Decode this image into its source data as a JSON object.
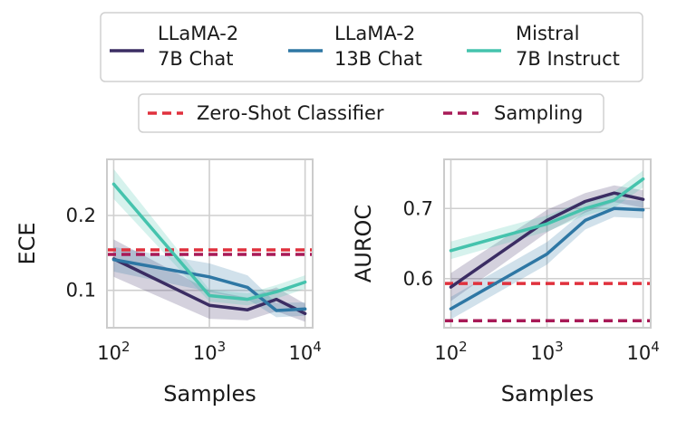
{
  "legend_models": [
    {
      "line1": "LLaMA-2",
      "line2": "7B Chat",
      "color": "#3b2d63"
    },
    {
      "line1": "LLaMA-2",
      "line2": "13B Chat",
      "color": "#2e77a4"
    },
    {
      "line1": "Mistral",
      "line2": "7B Instruct",
      "color": "#45c3ad"
    }
  ],
  "legend_baselines": [
    {
      "label": "Zero-Shot Classifier",
      "color": "#e0313d"
    },
    {
      "label": "Sampling",
      "color": "#a81a57"
    }
  ],
  "chart_data": [
    {
      "type": "line",
      "xscale": "log",
      "xlabel": "Samples",
      "ylabel": "ECE",
      "xlim": [
        85,
        12000
      ],
      "ylim": [
        0.05,
        0.275
      ],
      "xticks": [
        {
          "value": 100,
          "base": "10",
          "exp": "2"
        },
        {
          "value": 1000,
          "base": "10",
          "exp": "3"
        },
        {
          "value": 10000,
          "base": "10",
          "exp": "4"
        }
      ],
      "yticks": [
        {
          "value": 0.1,
          "label": "0.1"
        },
        {
          "value": 0.2,
          "label": "0.2"
        }
      ],
      "grid": true,
      "x": [
        100,
        1000,
        2500,
        5000,
        10000
      ],
      "series": [
        {
          "name": "LLaMA-2 7B Chat",
          "color": "#3b2d63",
          "values": [
            0.142,
            0.08,
            0.074,
            0.088,
            0.069
          ],
          "lower": [
            0.118,
            0.062,
            0.06,
            0.072,
            0.058
          ],
          "upper": [
            0.168,
            0.1,
            0.09,
            0.104,
            0.082
          ]
        },
        {
          "name": "LLaMA-2 13B Chat",
          "color": "#2e77a4",
          "values": [
            0.141,
            0.118,
            0.104,
            0.073,
            0.075
          ],
          "lower": [
            0.125,
            0.098,
            0.088,
            0.064,
            0.066
          ],
          "upper": [
            0.158,
            0.136,
            0.12,
            0.083,
            0.084
          ]
        },
        {
          "name": "Mistral 7B Instruct",
          "color": "#45c3ad",
          "values": [
            0.242,
            0.093,
            0.088,
            0.098,
            0.111
          ],
          "lower": [
            0.222,
            0.085,
            0.08,
            0.089,
            0.102
          ],
          "upper": [
            0.262,
            0.101,
            0.096,
            0.107,
            0.12
          ]
        }
      ],
      "baselines": [
        {
          "name": "Zero-Shot Classifier",
          "color": "#e0313d",
          "value": 0.154
        },
        {
          "name": "Sampling",
          "color": "#a81a57",
          "value": 0.148
        }
      ]
    },
    {
      "type": "line",
      "xscale": "log",
      "xlabel": "Samples",
      "ylabel": "AUROC",
      "xlim": [
        85,
        12000
      ],
      "ylim": [
        0.53,
        0.77
      ],
      "xticks": [
        {
          "value": 100,
          "base": "10",
          "exp": "2"
        },
        {
          "value": 1000,
          "base": "10",
          "exp": "3"
        },
        {
          "value": 10000,
          "base": "10",
          "exp": "4"
        }
      ],
      "yticks": [
        {
          "value": 0.6,
          "label": "0.6"
        },
        {
          "value": 0.7,
          "label": "0.7"
        }
      ],
      "grid": true,
      "x": [
        100,
        1000,
        2500,
        5000,
        10000
      ],
      "series": [
        {
          "name": "LLaMA-2 7B Chat",
          "color": "#3b2d63",
          "values": [
            0.588,
            0.683,
            0.71,
            0.722,
            0.713
          ],
          "lower": [
            0.568,
            0.666,
            0.694,
            0.709,
            0.701
          ],
          "upper": [
            0.608,
            0.698,
            0.722,
            0.733,
            0.726
          ]
        },
        {
          "name": "LLaMA-2 13B Chat",
          "color": "#2e77a4",
          "values": [
            0.557,
            0.635,
            0.683,
            0.7,
            0.698
          ],
          "lower": [
            0.542,
            0.62,
            0.67,
            0.688,
            0.686
          ],
          "upper": [
            0.574,
            0.652,
            0.697,
            0.713,
            0.711
          ]
        },
        {
          "name": "Mistral 7B Instruct",
          "color": "#45c3ad",
          "values": [
            0.64,
            0.678,
            0.7,
            0.712,
            0.742
          ],
          "lower": [
            0.628,
            0.667,
            0.69,
            0.701,
            0.73
          ],
          "upper": [
            0.653,
            0.69,
            0.712,
            0.724,
            0.754
          ]
        }
      ],
      "baselines": [
        {
          "name": "Zero-Shot Classifier",
          "color": "#e0313d",
          "value": 0.593
        },
        {
          "name": "Sampling",
          "color": "#a81a57",
          "value": 0.54
        }
      ]
    }
  ]
}
